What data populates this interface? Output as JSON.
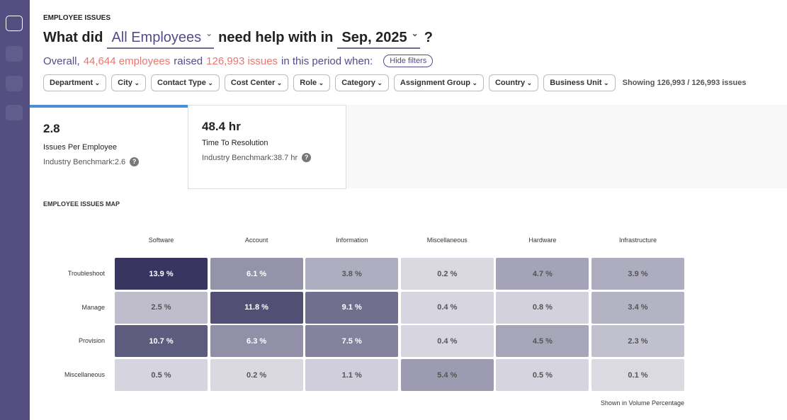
{
  "header": {
    "section": "EMPLOYEE ISSUES",
    "question": {
      "prefix": "What did",
      "audience": "All Employees",
      "middle": "need help with in",
      "period": "Sep, 2025",
      "suffix": "?"
    },
    "summary": {
      "lead": "Overall,",
      "employees": "44,644 employees",
      "verb": "raised",
      "issues": "126,993 issues",
      "tail": "in this period when:",
      "toggle": "Hide filters"
    }
  },
  "filters": {
    "items": [
      "Department",
      "City",
      "Contact Type",
      "Cost Center",
      "Role",
      "Category",
      "Assignment Group",
      "Country",
      "Business Unit"
    ],
    "showing": "Showing 126,993 / 126,993 issues"
  },
  "kpis": [
    {
      "value": "2.8",
      "label": "Issues Per Employee",
      "benchmark": "Industry Benchmark:2.6"
    },
    {
      "value": "48.4 hr",
      "label": "Time To Resolution",
      "benchmark": "Industry Benchmark:38.7 hr"
    }
  ],
  "map": {
    "title": "EMPLOYEE ISSUES MAP",
    "columns": [
      "Software",
      "Account",
      "Information",
      "Miscellaneous",
      "Hardware",
      "Infrastructure"
    ],
    "rows": [
      "Troubleshoot",
      "Manage",
      "Provision",
      "Miscellaneous"
    ],
    "values": [
      [
        13.9,
        6.1,
        3.8,
        0.2,
        4.7,
        3.9
      ],
      [
        2.5,
        11.8,
        9.1,
        0.4,
        0.8,
        3.4
      ],
      [
        10.7,
        6.3,
        7.5,
        0.4,
        4.5,
        2.3
      ],
      [
        0.5,
        0.2,
        1.1,
        5.4,
        0.5,
        0.1
      ]
    ],
    "value_labels": [
      [
        "13.9 %",
        "6.1 %",
        "3.8 %",
        "0.2 %",
        "4.7 %",
        "3.9 %"
      ],
      [
        "2.5 %",
        "11.8 %",
        "9.1 %",
        "0.4 %",
        "0.8 %",
        "3.4 %"
      ],
      [
        "10.7 %",
        "6.3 %",
        "7.5 %",
        "0.4 %",
        "4.5 %",
        "2.3 %"
      ],
      [
        "0.5 %",
        "0.2 %",
        "1.1 %",
        "5.4 %",
        "0.5 %",
        "0.1 %"
      ]
    ],
    "note": "Shown in Volume Percentage"
  }
}
